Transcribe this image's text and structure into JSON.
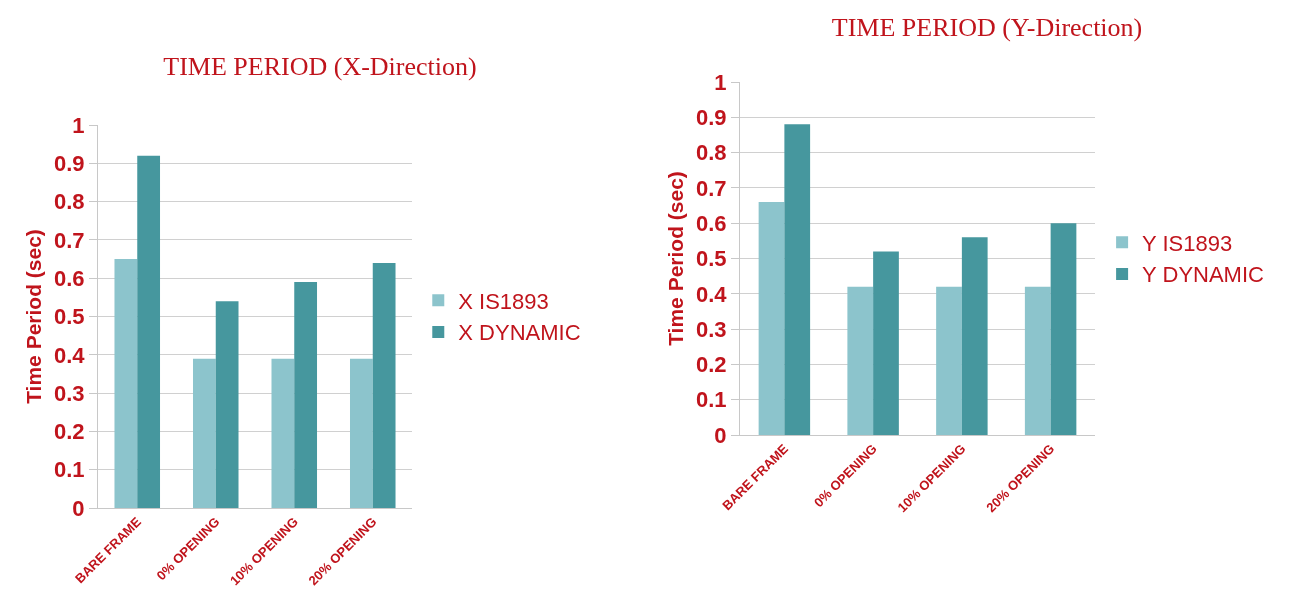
{
  "chart_data": [
    {
      "type": "bar",
      "title": "TIME PERIOD (X-Direction)",
      "ylabel": "Time Period (sec)",
      "categories": [
        "BARE FRAME",
        "0% OPENING",
        "10% OPENING",
        "20% OPENING"
      ],
      "series": [
        {
          "name": "X IS1893",
          "color": "#8cc4cc",
          "values": [
            0.65,
            0.39,
            0.39,
            0.39
          ]
        },
        {
          "name": "X DYNAMIC",
          "color": "#46979e",
          "values": [
            0.92,
            0.54,
            0.59,
            0.64
          ]
        }
      ],
      "ylim": [
        0,
        1
      ],
      "yticks": [
        0,
        0.1,
        0.2,
        0.3,
        0.4,
        0.5,
        0.6,
        0.7,
        0.8,
        0.9,
        1
      ],
      "grid": "y",
      "legend": "right"
    },
    {
      "type": "bar",
      "title": "TIME PERIOD (Y-Direction)",
      "ylabel": "Time Period (sec)",
      "categories": [
        "BARE FRAME",
        "0% OPENING",
        "10% OPENING",
        "20% OPENING"
      ],
      "series": [
        {
          "name": "Y IS1893",
          "color": "#8cc4cc",
          "values": [
            0.66,
            0.42,
            0.42,
            0.42
          ]
        },
        {
          "name": "Y DYNAMIC",
          "color": "#46979e",
          "values": [
            0.88,
            0.52,
            0.56,
            0.6
          ]
        }
      ],
      "ylim": [
        0,
        1
      ],
      "yticks": [
        0,
        0.1,
        0.2,
        0.3,
        0.4,
        0.5,
        0.6,
        0.7,
        0.8,
        0.9,
        1
      ],
      "grid": "y",
      "legend": "right"
    }
  ]
}
